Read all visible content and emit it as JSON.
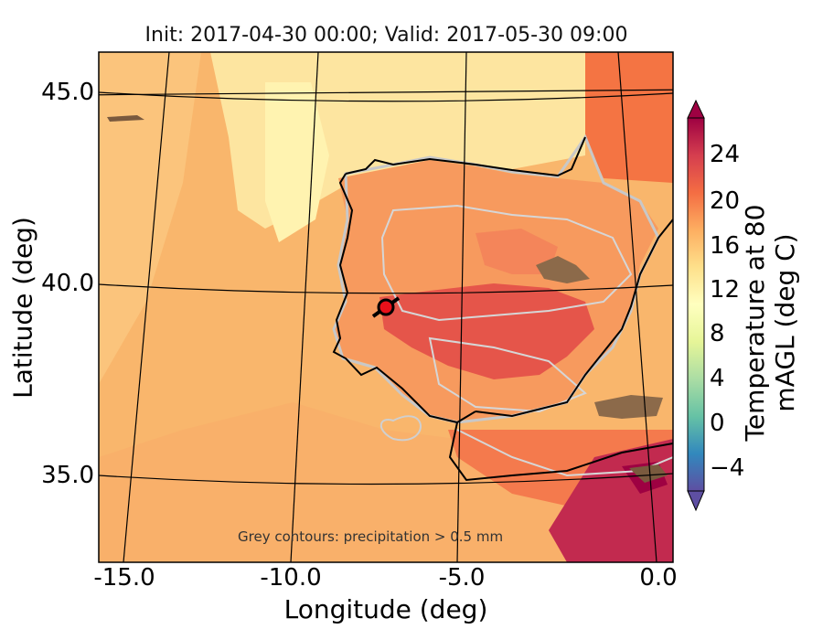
{
  "title": "Init: 2017-04-30 00:00; Valid: 2017-05-30 09:00",
  "xaxis": {
    "label": "Longitude (deg)",
    "ticks": [
      "-15.0",
      "-10.0",
      "-5.0",
      "0.0"
    ]
  },
  "yaxis": {
    "label": "Latitude (deg)",
    "ticks": [
      "45.0",
      "40.0",
      "35.0"
    ]
  },
  "annotation": "Grey contours: precipitation > 0.5 mm",
  "colorbar": {
    "label": "Temperature at 80 mAGL (deg C)",
    "ticks": [
      "24",
      "20",
      "16",
      "12",
      "8",
      "4",
      "0",
      "−4"
    ],
    "colormap": "Spectral_r",
    "colors": [
      "#5e4fa2",
      "#3288bd",
      "#66c2a5",
      "#abdda4",
      "#e6f598",
      "#ffffbf",
      "#fee08b",
      "#fdae61",
      "#f46d43",
      "#d53e4f",
      "#9e0142"
    ]
  },
  "marker": {
    "color": "#e8101a"
  },
  "chart_data": {
    "type": "heatmap",
    "title": "Init: 2017-04-30 00:00; Valid: 2017-05-30 09:00",
    "xlabel": "Longitude (deg)",
    "ylabel": "Latitude (deg)",
    "xlim": [
      -15.9,
      0.2
    ],
    "ylim": [
      32.6,
      46.1
    ],
    "variable": "Temperature at 80 mAGL (deg C)",
    "value_range": [
      -6,
      26
    ],
    "colorbar_ticks": [
      -4,
      0,
      4,
      8,
      12,
      16,
      20,
      24
    ],
    "marker_location": {
      "lon": -7.6,
      "lat": 39.3
    }
  }
}
